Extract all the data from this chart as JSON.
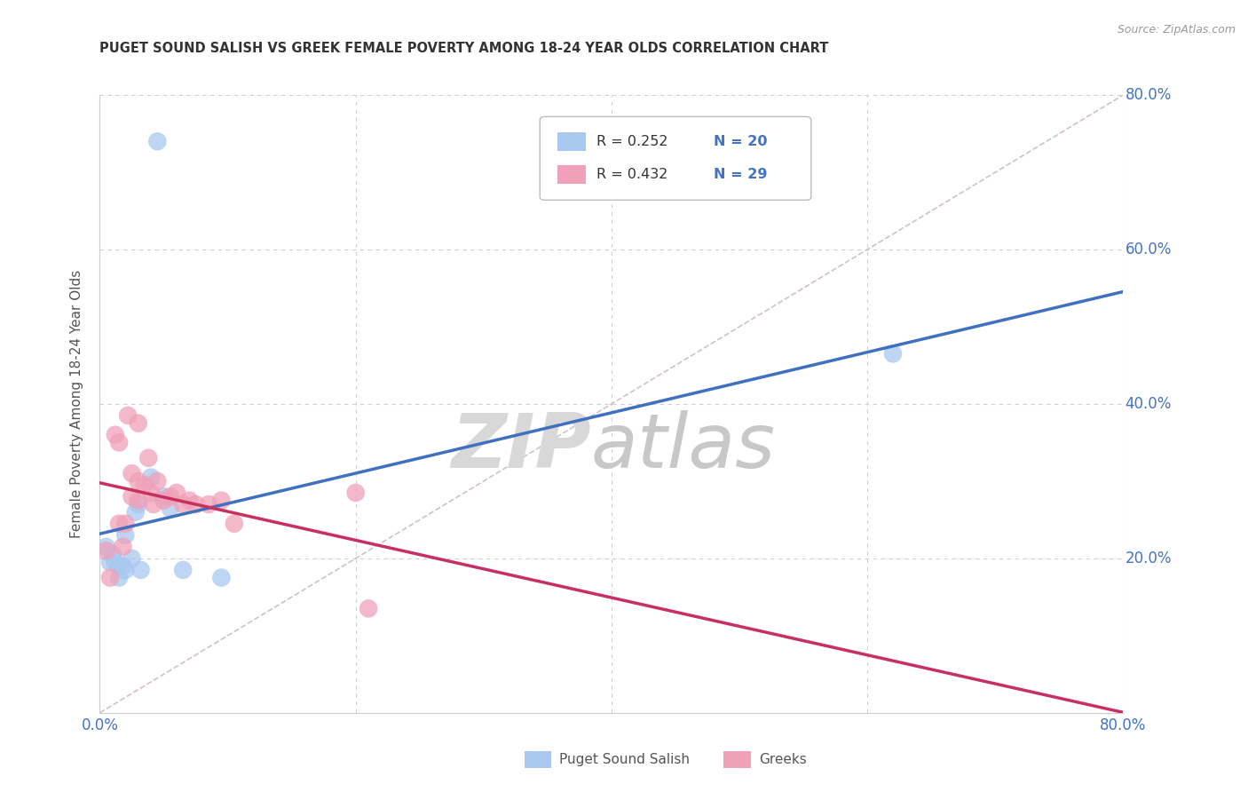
{
  "title": "PUGET SOUND SALISH VS GREEK FEMALE POVERTY AMONG 18-24 YEAR OLDS CORRELATION CHART",
  "source": "Source: ZipAtlas.com",
  "ylabel": "Female Poverty Among 18-24 Year Olds",
  "xlim": [
    0.0,
    0.8
  ],
  "ylim": [
    0.0,
    0.8
  ],
  "background_color": "#ffffff",
  "grid_color": "#d0d0d0",
  "diagonal_color": "#c8b0c0",
  "series1_name": "Puget Sound Salish",
  "series2_name": "Greeks",
  "series1_color": "#a8c8f0",
  "series2_color": "#f0a0b8",
  "series1_line_color": "#4070c0",
  "series2_line_color": "#c83060",
  "tick_color": "#4472c4",
  "watermark_zip": "ZIP",
  "watermark_atlas": "atlas",
  "puget_x": [
    0.005,
    0.008,
    0.01,
    0.012,
    0.015,
    0.015,
    0.018,
    0.02,
    0.02,
    0.025,
    0.028,
    0.03,
    0.032,
    0.04,
    0.05,
    0.055,
    0.065,
    0.095,
    0.62,
    0.045
  ],
  "puget_y": [
    0.215,
    0.195,
    0.205,
    0.195,
    0.19,
    0.175,
    0.19,
    0.23,
    0.185,
    0.2,
    0.26,
    0.27,
    0.185,
    0.305,
    0.28,
    0.265,
    0.185,
    0.175,
    0.465,
    0.74
  ],
  "greek_x": [
    0.005,
    0.008,
    0.012,
    0.015,
    0.015,
    0.018,
    0.02,
    0.022,
    0.025,
    0.025,
    0.03,
    0.03,
    0.03,
    0.035,
    0.038,
    0.04,
    0.042,
    0.045,
    0.05,
    0.055,
    0.06,
    0.065,
    0.07,
    0.075,
    0.085,
    0.095,
    0.105,
    0.2,
    0.21
  ],
  "greek_y": [
    0.21,
    0.175,
    0.36,
    0.35,
    0.245,
    0.215,
    0.245,
    0.385,
    0.31,
    0.28,
    0.375,
    0.3,
    0.275,
    0.295,
    0.33,
    0.285,
    0.27,
    0.3,
    0.275,
    0.28,
    0.285,
    0.27,
    0.275,
    0.27,
    0.27,
    0.275,
    0.245,
    0.285,
    0.135
  ],
  "legend_R1": "R = 0.252",
  "legend_N1": "N = 20",
  "legend_R2": "R = 0.432",
  "legend_N2": "N = 29"
}
